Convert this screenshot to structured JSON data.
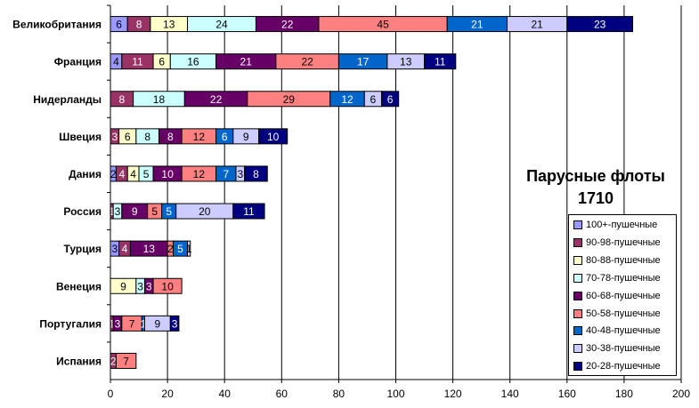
{
  "chart_data": {
    "type": "bar",
    "orientation": "horizontal",
    "stacked": true,
    "title": "Парусные флоты 1710",
    "title_lines": [
      "Парусные флоты",
      "1710"
    ],
    "categories": [
      "Великобритания",
      "Франция",
      "Нидерланды",
      "Швеция",
      "Дания",
      "Россия",
      "Турция",
      "Венеция",
      "Португалия",
      "Испания"
    ],
    "series": [
      {
        "name": "100+-пушечные",
        "color": "#9999ff",
        "values": [
          6,
          4,
          0,
          0,
          2,
          0,
          3,
          0,
          0,
          0
        ]
      },
      {
        "name": "90-98-пушечные",
        "color": "#993366",
        "values": [
          8,
          11,
          8,
          3,
          4,
          1,
          4,
          0,
          1,
          2
        ]
      },
      {
        "name": "80-88-пушечные",
        "color": "#ffffcc",
        "values": [
          13,
          6,
          0,
          6,
          4,
          0,
          0,
          9,
          0,
          0
        ]
      },
      {
        "name": "70-78-пушечные",
        "color": "#ccffff",
        "values": [
          24,
          16,
          18,
          8,
          5,
          3,
          0,
          3,
          0,
          0
        ]
      },
      {
        "name": "60-68-пушечные",
        "color": "#660066",
        "values": [
          22,
          21,
          22,
          8,
          10,
          9,
          13,
          3,
          3,
          0
        ]
      },
      {
        "name": "50-58-пушечные",
        "color": "#ff8080",
        "values": [
          45,
          22,
          29,
          12,
          12,
          5,
          2,
          10,
          7,
          7
        ]
      },
      {
        "name": "40-48-пушечные",
        "color": "#0066cc",
        "values": [
          21,
          17,
          12,
          6,
          7,
          5,
          5,
          0,
          1,
          0
        ]
      },
      {
        "name": "30-38-пушечные",
        "color": "#ccccff",
        "values": [
          21,
          13,
          6,
          9,
          3,
          20,
          1,
          0,
          9,
          0
        ]
      },
      {
        "name": "20-28-пушечные",
        "color": "#000080",
        "values": [
          23,
          11,
          6,
          10,
          8,
          11,
          0,
          0,
          3,
          0
        ]
      }
    ],
    "xlim": [
      0,
      200
    ],
    "xticks": [
      0,
      20,
      40,
      60,
      80,
      100,
      120,
      140,
      160,
      180,
      200
    ],
    "grid": true,
    "legend_position": "bottom-right",
    "xlabel": "",
    "ylabel": ""
  }
}
